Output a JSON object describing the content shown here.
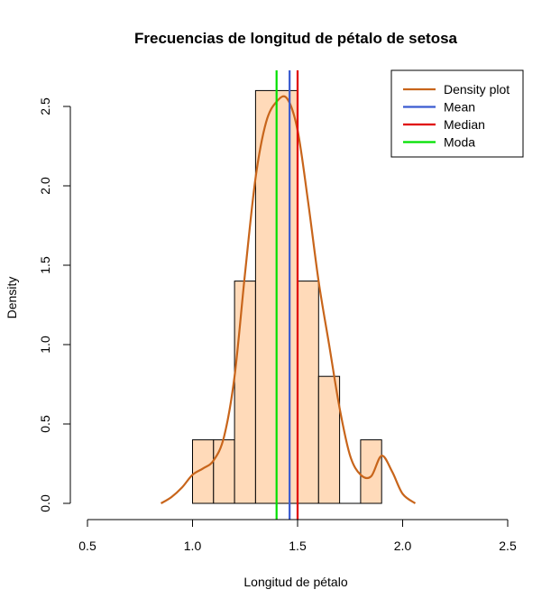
{
  "chart_data": {
    "type": "histogram",
    "title": "Frecuencias de longitud de pétalo de setosa",
    "xlabel": "Longitud de pétalo",
    "ylabel": "Density",
    "xlim": [
      0.5,
      2.5
    ],
    "ylim": [
      0,
      2.6
    ],
    "x_ticks": [
      "0.5",
      "1.0",
      "1.5",
      "2.0",
      "2.5"
    ],
    "y_ticks": [
      "0.0",
      "0.5",
      "1.0",
      "1.5",
      "2.0",
      "2.5"
    ],
    "bar_color": "#ffdab9",
    "bins": [
      {
        "x0": 1.0,
        "x1": 1.1,
        "density": 0.4
      },
      {
        "x0": 1.1,
        "x1": 1.2,
        "density": 0.4
      },
      {
        "x0": 1.2,
        "x1": 1.3,
        "density": 1.4
      },
      {
        "x0": 1.3,
        "x1": 1.4,
        "density": 2.6
      },
      {
        "x0": 1.4,
        "x1": 1.5,
        "density": 2.6
      },
      {
        "x0": 1.5,
        "x1": 1.6,
        "density": 1.4
      },
      {
        "x0": 1.6,
        "x1": 1.7,
        "density": 0.8
      },
      {
        "x0": 1.7,
        "x1": 1.8,
        "density": 0.0
      },
      {
        "x0": 1.8,
        "x1": 1.9,
        "density": 0.4
      }
    ],
    "density_curve": {
      "name": "Density plot",
      "color": "#c8651b",
      "x": [
        0.85,
        0.9,
        0.95,
        1.0,
        1.05,
        1.1,
        1.15,
        1.2,
        1.25,
        1.3,
        1.35,
        1.4,
        1.45,
        1.5,
        1.55,
        1.6,
        1.65,
        1.7,
        1.75,
        1.8,
        1.85,
        1.9,
        1.95,
        2.0,
        2.06
      ],
      "y": [
        0.0,
        0.04,
        0.1,
        0.18,
        0.22,
        0.27,
        0.42,
        0.8,
        1.45,
        2.05,
        2.4,
        2.53,
        2.55,
        2.35,
        1.9,
        1.4,
        1.0,
        0.6,
        0.3,
        0.18,
        0.17,
        0.3,
        0.2,
        0.06,
        0.0
      ]
    },
    "vertical_lines": [
      {
        "name": "Mean",
        "x": 1.462,
        "color": "#3a5bd0"
      },
      {
        "name": "Median",
        "x": 1.5,
        "color": "#e00000"
      },
      {
        "name": "Moda",
        "x": 1.4,
        "color": "#00e000"
      }
    ],
    "legend": {
      "position": "top-right",
      "entries": [
        {
          "label": "Density plot",
          "color": "#c8651b"
        },
        {
          "label": "Mean",
          "color": "#3a5bd0"
        },
        {
          "label": "Median",
          "color": "#e00000"
        },
        {
          "label": "Moda",
          "color": "#00e000"
        }
      ]
    }
  }
}
